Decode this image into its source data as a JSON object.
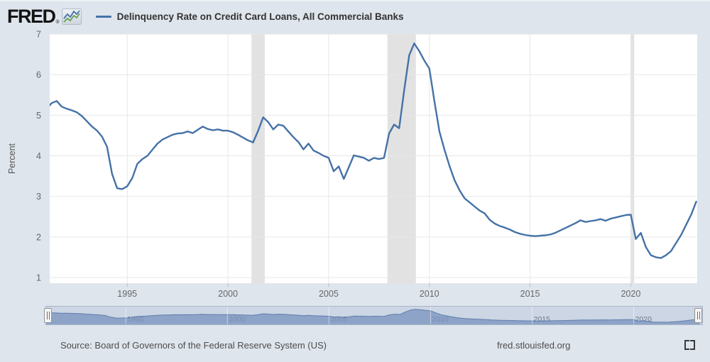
{
  "header": {
    "logo_text": "FRED",
    "logo_mark": "®",
    "title": "Delinquency Rate on Credit Card Loans, All Commercial Banks",
    "legend_color": "#4572a7"
  },
  "chart_data": {
    "type": "line",
    "title": "Delinquency Rate on Credit Card Loans, All Commercial Banks",
    "ylabel": "Percent",
    "series_name": "Delinquency Rate on Credit Card Loans, All Commercial Banks",
    "x_start_year": 1991.0,
    "x_step": 0.25,
    "x_unit": "decimal-year-quarterly",
    "values": [
      5.16,
      5.3,
      5.35,
      5.21,
      5.16,
      5.12,
      5.07,
      4.98,
      4.85,
      4.72,
      4.62,
      4.47,
      4.22,
      3.55,
      3.2,
      3.18,
      3.25,
      3.45,
      3.8,
      3.92,
      4.0,
      4.15,
      4.3,
      4.4,
      4.46,
      4.52,
      4.55,
      4.56,
      4.6,
      4.56,
      4.64,
      4.72,
      4.66,
      4.63,
      4.65,
      4.62,
      4.62,
      4.58,
      4.52,
      4.45,
      4.38,
      4.33,
      4.62,
      4.95,
      4.83,
      4.65,
      4.77,
      4.74,
      4.6,
      4.46,
      4.34,
      4.16,
      4.3,
      4.13,
      4.07,
      4.0,
      3.95,
      3.62,
      3.74,
      3.43,
      3.72,
      4.01,
      3.98,
      3.95,
      3.88,
      3.95,
      3.92,
      3.95,
      4.55,
      4.77,
      4.68,
      5.62,
      6.48,
      6.77,
      6.58,
      6.35,
      6.15,
      5.35,
      4.6,
      4.15,
      3.75,
      3.4,
      3.15,
      2.95,
      2.85,
      2.75,
      2.65,
      2.58,
      2.42,
      2.33,
      2.27,
      2.23,
      2.18,
      2.12,
      2.08,
      2.05,
      2.03,
      2.02,
      2.03,
      2.04,
      2.06,
      2.1,
      2.16,
      2.22,
      2.28,
      2.34,
      2.41,
      2.37,
      2.39,
      2.41,
      2.44,
      2.4,
      2.45,
      2.48,
      2.51,
      2.54,
      2.55,
      1.95,
      2.1,
      1.75,
      1.55,
      1.5,
      1.48,
      1.55,
      1.65,
      1.85,
      2.05,
      2.3,
      2.55,
      2.87
    ],
    "xlim": [
      1991.15,
      2023.3
    ],
    "ylim": [
      0.86,
      7
    ],
    "yticks": [
      1,
      2,
      3,
      4,
      5,
      6,
      7
    ],
    "xticks": [
      1995,
      2000,
      2005,
      2010,
      2015,
      2020
    ],
    "grid": true,
    "legend_position": "top-header",
    "recessions": [
      [
        2001.17,
        2001.83
      ],
      [
        2007.92,
        2009.33
      ],
      [
        2020.0,
        2020.17
      ]
    ],
    "line_color": "#4572a7",
    "recession_color": "#e2e2e2",
    "grid_color": "#e7e7e7",
    "axis_text_color": "#666666",
    "plot_bg": "#ffffff"
  },
  "navigator": {
    "labels": [
      "1995",
      "2000",
      "2005",
      "2010",
      "2015",
      "2020"
    ],
    "area_fill": "#7b95bf",
    "area_line": "#5878a8",
    "track_bg": "#ccd6e4",
    "label_color": "#6b7688"
  },
  "footer": {
    "source": "Source: Board of Governors of the Federal Reserve System (US)",
    "site": "fred.stlouisfed.org"
  }
}
